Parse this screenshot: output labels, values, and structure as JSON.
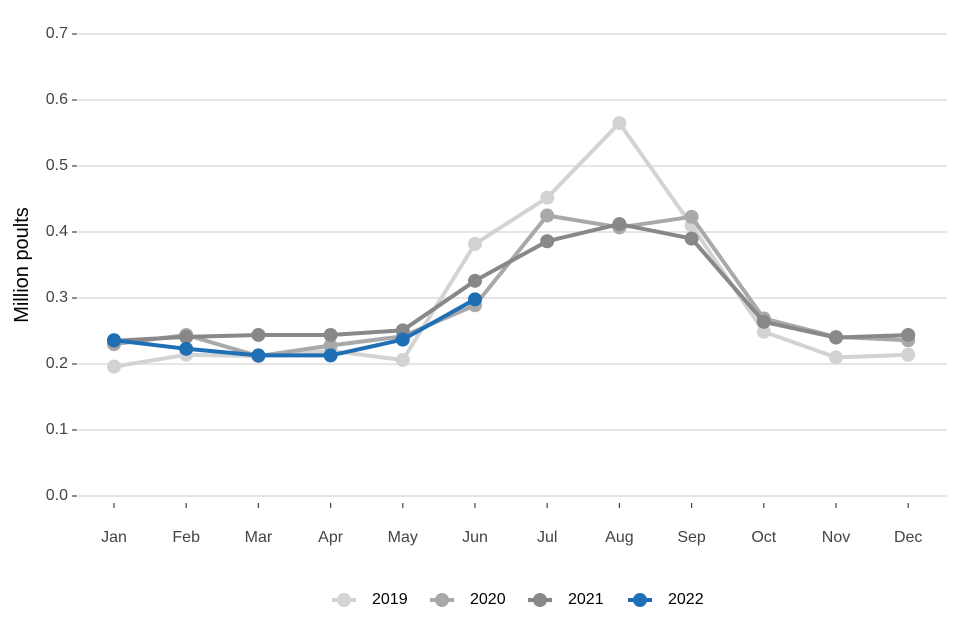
{
  "chart_data": {
    "type": "line",
    "title": "",
    "xlabel": "",
    "ylabel": "Million poults",
    "ylim": [
      0,
      0.7
    ],
    "yticks": [
      0.0,
      0.1,
      0.2,
      0.3,
      0.4,
      0.5,
      0.6,
      0.7
    ],
    "ytick_labels": [
      "0.0",
      "0.1",
      "0.2",
      "0.3",
      "0.4",
      "0.5",
      "0.6",
      "0.7"
    ],
    "grid": true,
    "legend_position": "bottom",
    "categories": [
      "Jan",
      "Feb",
      "Mar",
      "Apr",
      "May",
      "Jun",
      "Jul",
      "Aug",
      "Sep",
      "Oct",
      "Nov",
      "Dec"
    ],
    "series": [
      {
        "name": "2019",
        "color": "#d3d3d3",
        "values": [
          0.196,
          0.214,
          0.212,
          0.22,
          0.206,
          0.382,
          0.452,
          0.565,
          0.41,
          0.249,
          0.21,
          0.214
        ]
      },
      {
        "name": "2020",
        "color": "#a9a9a9",
        "values": [
          0.23,
          0.244,
          0.212,
          0.228,
          0.242,
          0.289,
          0.425,
          0.407,
          0.423,
          0.269,
          0.241,
          0.236
        ]
      },
      {
        "name": "2021",
        "color": "#888888",
        "values": [
          0.235,
          0.241,
          0.244,
          0.244,
          0.251,
          0.326,
          0.386,
          0.412,
          0.39,
          0.264,
          0.24,
          0.244
        ]
      },
      {
        "name": "2022",
        "color": "#1f6fb5",
        "values": [
          0.236,
          0.223,
          0.213,
          0.213,
          0.237,
          0.298,
          null,
          null,
          null,
          null,
          null,
          null
        ]
      }
    ]
  }
}
